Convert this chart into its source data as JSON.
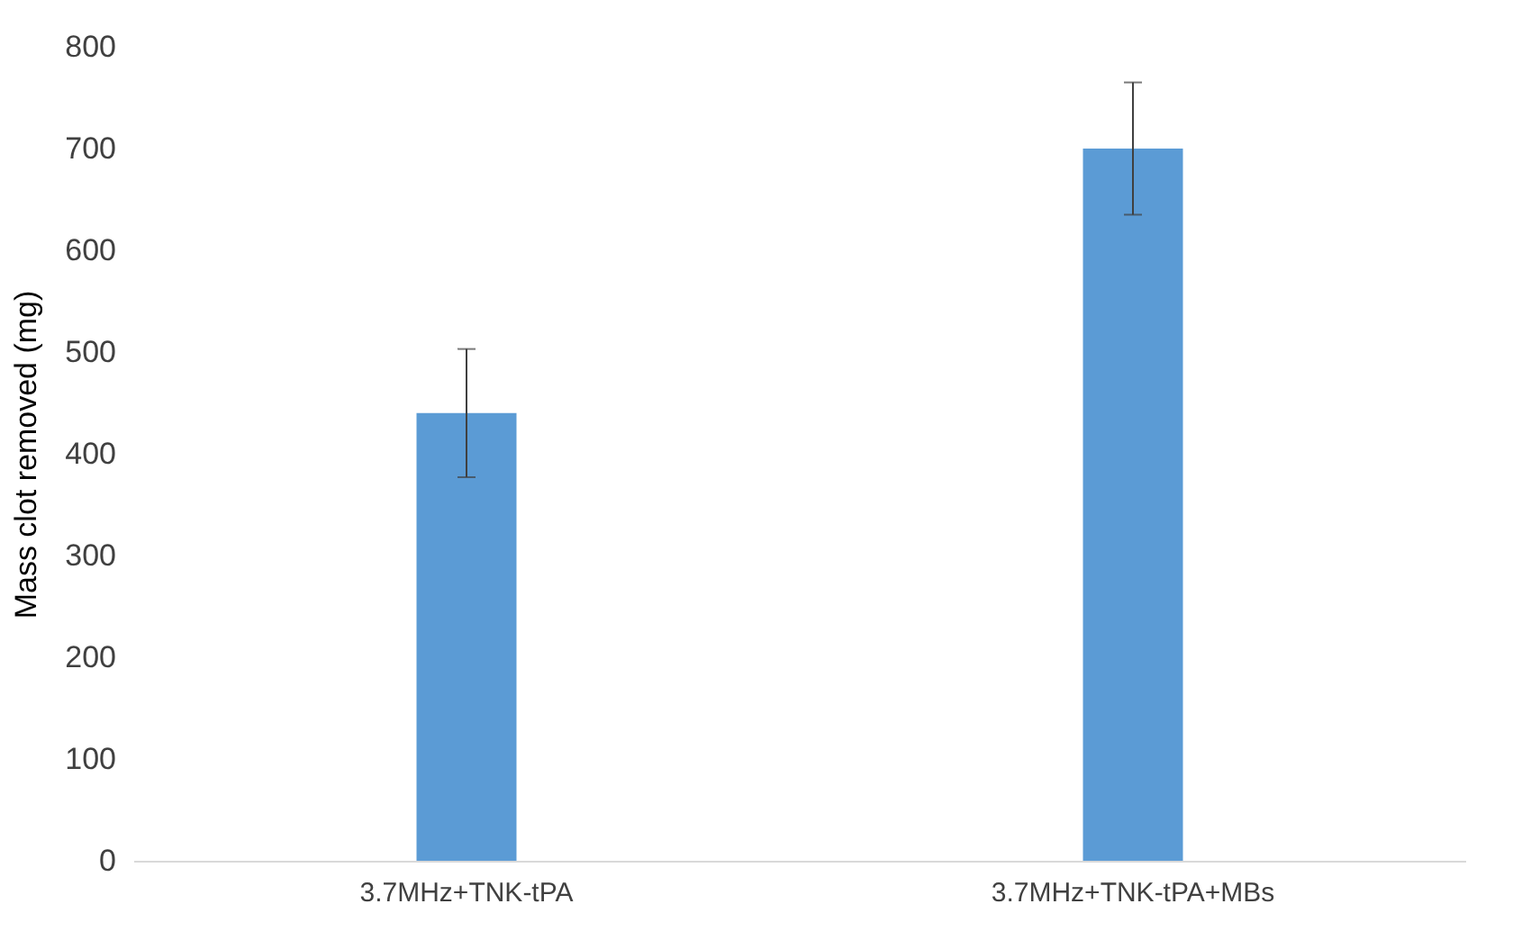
{
  "chart_data": {
    "type": "bar",
    "ylabel": "Mass clot removed (mg)",
    "categories": [
      "3.7MHz+TNK-tPA",
      "3.7MHz+TNK-tPA+MBs"
    ],
    "values": [
      440,
      700
    ],
    "errors": [
      63,
      65
    ],
    "color": "#5b9bd5",
    "ylim": [
      0,
      800
    ],
    "yticks": [
      0,
      100,
      200,
      300,
      400,
      500,
      600,
      700,
      800
    ],
    "grid": false
  }
}
